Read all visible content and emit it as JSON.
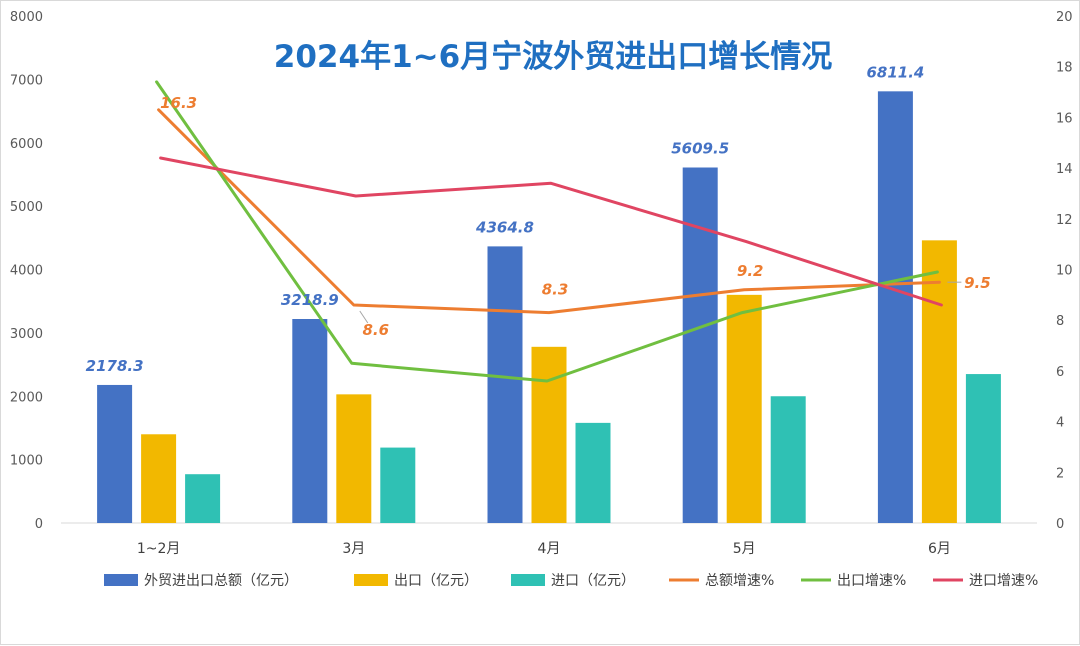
{
  "chart_data": {
    "type": "bar",
    "title": "2024年1~6月宁波外贸进出口增长情况",
    "categories": [
      "1~2月",
      "3月",
      "4月",
      "5月",
      "6月"
    ],
    "y_left": {
      "min": 0,
      "max": 8000,
      "ticks": [
        "0",
        "1000",
        "2000",
        "3000",
        "4000",
        "5000",
        "6000",
        "7000",
        "8000"
      ]
    },
    "y_right": {
      "min": 0,
      "max": 20,
      "ticks": [
        "0",
        "2",
        "4",
        "6",
        "8",
        "10",
        "12",
        "14",
        "16",
        "18",
        "20"
      ]
    },
    "bar_series": [
      {
        "name": "外贸进出口总额（亿元）",
        "color": "#4472c4",
        "values": [
          2178.3,
          3218.9,
          4364.8,
          5609.5,
          6811.4
        ],
        "labels": [
          "2178.3",
          "3218.9",
          "4364.8",
          "5609.5",
          "6811.4"
        ]
      },
      {
        "name": "出口（亿元）",
        "color": "#f2b800",
        "values": [
          1400,
          2030,
          2780,
          3600,
          4460
        ]
      },
      {
        "name": "进口（亿元）",
        "color": "#2fc1b4",
        "values": [
          770,
          1190,
          1580,
          2000,
          2350
        ]
      }
    ],
    "line_series": [
      {
        "name": "总额增速%",
        "color": "#ed7d31",
        "values": [
          16.3,
          8.6,
          8.3,
          9.2,
          9.5
        ],
        "labels": [
          "16.3",
          "8.6",
          "8.3",
          "9.2",
          "9.5"
        ]
      },
      {
        "name": "出口增速%",
        "color": "#70bf40",
        "values": [
          17.4,
          6.3,
          5.6,
          8.3,
          9.9
        ]
      },
      {
        "name": "进口增速%",
        "color": "#e04562",
        "values": [
          14.4,
          12.9,
          13.4,
          11.1,
          8.6
        ]
      }
    ],
    "legend_position": "bottom"
  }
}
